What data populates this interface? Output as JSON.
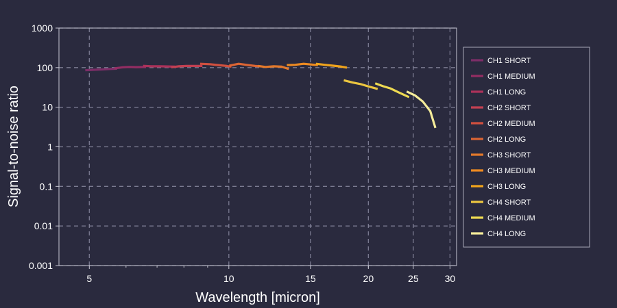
{
  "chart_data": {
    "type": "line",
    "title": "",
    "xlabel": "Wavelength [micron]",
    "ylabel": "Signal-to-noise ratio",
    "x_scale": "log",
    "y_scale": "log",
    "xlim": [
      4.3,
      31
    ],
    "ylim": [
      0.001,
      1000
    ],
    "x_ticks": [
      5,
      10,
      15,
      20,
      25,
      30
    ],
    "x_tick_labels": [
      "5",
      "10",
      "15",
      "20",
      "25",
      "30"
    ],
    "y_ticks": [
      0.001,
      0.01,
      0.1,
      1,
      10,
      100,
      1000
    ],
    "y_tick_labels": [
      "0.001",
      "0.01",
      "0.1",
      "1",
      "10",
      "100",
      "1000"
    ],
    "grid": true,
    "legend_position": "right",
    "series": [
      {
        "name": "CH1 SHORT",
        "color": "#7d2e68",
        "x": [
          4.9,
          5.1,
          5.3,
          5.5,
          5.74
        ],
        "y": [
          86,
          88,
          90,
          92,
          94
        ]
      },
      {
        "name": "CH1 MEDIUM",
        "color": "#942d63",
        "x": [
          5.66,
          5.9,
          6.1,
          6.3,
          6.63
        ],
        "y": [
          96,
          102,
          104,
          103,
          104
        ]
      },
      {
        "name": "CH1 LONG",
        "color": "#ac325a",
        "x": [
          6.53,
          6.8,
          7.1,
          7.4,
          7.65
        ],
        "y": [
          111,
          108,
          108,
          107,
          106
        ]
      },
      {
        "name": "CH2 SHORT",
        "color": "#c24052",
        "x": [
          7.51,
          7.8,
          8.1,
          8.5,
          8.77
        ],
        "y": [
          102,
          108,
          110,
          110,
          110
        ]
      },
      {
        "name": "CH2 MEDIUM",
        "color": "#d0503f",
        "x": [
          8.67,
          9.1,
          9.5,
          9.9,
          10.13
        ],
        "y": [
          125,
          122,
          116,
          110,
          106
        ]
      },
      {
        "name": "CH2 LONG",
        "color": "#db6534",
        "x": [
          10.02,
          10.5,
          11.0,
          11.4,
          11.7
        ],
        "y": [
          112,
          125,
          116,
          110,
          108
        ]
      },
      {
        "name": "CH3 SHORT",
        "color": "#e3792b",
        "x": [
          11.55,
          12.0,
          12.5,
          13.0,
          13.47
        ],
        "y": [
          110,
          104,
          108,
          106,
          92
        ]
      },
      {
        "name": "CH3 MEDIUM",
        "color": "#ec8a22",
        "x": [
          13.34,
          13.9,
          14.5,
          15.1,
          15.57
        ],
        "y": [
          116,
          118,
          125,
          120,
          116
        ]
      },
      {
        "name": "CH3 LONG",
        "color": "#f0a41c",
        "x": [
          15.41,
          16.1,
          16.8,
          17.5,
          17.98
        ],
        "y": [
          125,
          118,
          112,
          106,
          100
        ]
      },
      {
        "name": "CH4 SHORT",
        "color": "#ecc640",
        "x": [
          17.7,
          18.5,
          19.3,
          20.1,
          20.95
        ],
        "y": [
          48,
          42,
          38,
          33,
          29
        ]
      },
      {
        "name": "CH4 MEDIUM",
        "color": "#eeda52",
        "x": [
          20.69,
          21.5,
          22.3,
          23.2,
          24.48
        ],
        "y": [
          40,
          34,
          30,
          24,
          18
        ]
      },
      {
        "name": "CH4 LONG",
        "color": "#f5ec9a",
        "x": [
          24.19,
          25.2,
          26.2,
          27.2,
          27.9
        ],
        "y": [
          25,
          20,
          14,
          8,
          3
        ]
      }
    ]
  }
}
